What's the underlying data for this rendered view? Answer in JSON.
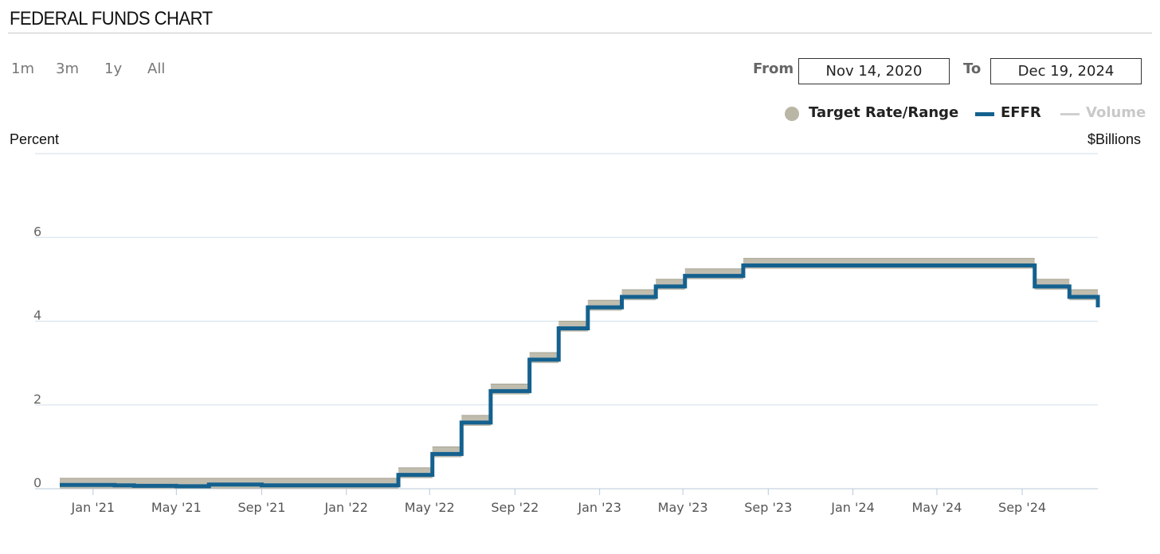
{
  "title": "FEDERAL FUNDS CHART",
  "range_buttons": [
    "1m",
    "3m",
    "1y",
    "All"
  ],
  "date_range": {
    "from_label": "From",
    "from_value": "Nov 14, 2020",
    "to_label": "To",
    "to_value": "Dec 19, 2024"
  },
  "legend": {
    "target": "Target Rate/Range",
    "effr": "EFFR",
    "volume": "Volume"
  },
  "colors": {
    "target": "#b9b6a6",
    "effr": "#14618f",
    "volume": "#d0d0d0",
    "grid": "#d2dfeb",
    "axis": "#b8c8d8"
  },
  "chart_data": {
    "type": "line",
    "left_axis_label": "Percent",
    "right_axis_label": "$Billions",
    "x_range": [
      "2020-11-14",
      "2024-12-19"
    ],
    "ylim": [
      0,
      8
    ],
    "y_ticks": [
      0,
      2,
      4,
      6
    ],
    "x_tick_labels": [
      {
        "date": "2021-01-01",
        "label": "Jan '21"
      },
      {
        "date": "2021-05-01",
        "label": "May '21"
      },
      {
        "date": "2021-09-01",
        "label": "Sep '21"
      },
      {
        "date": "2022-01-01",
        "label": "Jan '22"
      },
      {
        "date": "2022-05-01",
        "label": "May '22"
      },
      {
        "date": "2022-09-01",
        "label": "Sep '22"
      },
      {
        "date": "2023-01-01",
        "label": "Jan '23"
      },
      {
        "date": "2023-05-01",
        "label": "May '23"
      },
      {
        "date": "2023-09-01",
        "label": "Sep '23"
      },
      {
        "date": "2024-01-01",
        "label": "Jan '24"
      },
      {
        "date": "2024-05-01",
        "label": "May '24"
      },
      {
        "date": "2024-09-01",
        "label": "Sep '24"
      }
    ],
    "series": [
      {
        "name": "Target Rate/Range",
        "ranges": [
          {
            "start": "2020-11-14",
            "low": 0.0,
            "high": 0.25
          },
          {
            "start": "2022-03-17",
            "low": 0.25,
            "high": 0.5
          },
          {
            "start": "2022-05-05",
            "low": 0.75,
            "high": 1.0
          },
          {
            "start": "2022-06-16",
            "low": 1.5,
            "high": 1.75
          },
          {
            "start": "2022-07-28",
            "low": 2.25,
            "high": 2.5
          },
          {
            "start": "2022-09-22",
            "low": 3.0,
            "high": 3.25
          },
          {
            "start": "2022-11-03",
            "low": 3.75,
            "high": 4.0
          },
          {
            "start": "2022-12-15",
            "low": 4.25,
            "high": 4.5
          },
          {
            "start": "2023-02-02",
            "low": 4.5,
            "high": 4.75
          },
          {
            "start": "2023-03-23",
            "low": 4.75,
            "high": 5.0
          },
          {
            "start": "2023-05-04",
            "low": 5.0,
            "high": 5.25
          },
          {
            "start": "2023-07-27",
            "low": 5.25,
            "high": 5.5
          },
          {
            "start": "2024-09-19",
            "low": 4.75,
            "high": 5.0
          },
          {
            "start": "2024-11-08",
            "low": 4.5,
            "high": 4.75
          },
          {
            "start": "2024-12-19",
            "low": 4.25,
            "high": 4.5
          }
        ]
      },
      {
        "name": "EFFR",
        "points": [
          [
            "2020-11-14",
            0.09
          ],
          [
            "2021-01-01",
            0.09
          ],
          [
            "2021-02-01",
            0.08
          ],
          [
            "2021-03-01",
            0.07
          ],
          [
            "2021-05-01",
            0.06
          ],
          [
            "2021-06-17",
            0.1
          ],
          [
            "2021-09-01",
            0.08
          ],
          [
            "2022-01-01",
            0.08
          ],
          [
            "2022-03-17",
            0.33
          ],
          [
            "2022-05-05",
            0.83
          ],
          [
            "2022-06-16",
            1.58
          ],
          [
            "2022-07-28",
            2.33
          ],
          [
            "2022-09-22",
            3.08
          ],
          [
            "2022-11-03",
            3.83
          ],
          [
            "2022-12-15",
            4.33
          ],
          [
            "2023-02-02",
            4.58
          ],
          [
            "2023-03-23",
            4.83
          ],
          [
            "2023-05-04",
            5.08
          ],
          [
            "2023-07-27",
            5.33
          ],
          [
            "2024-09-19",
            4.83
          ],
          [
            "2024-11-08",
            4.58
          ],
          [
            "2024-12-19",
            4.33
          ]
        ]
      }
    ]
  }
}
